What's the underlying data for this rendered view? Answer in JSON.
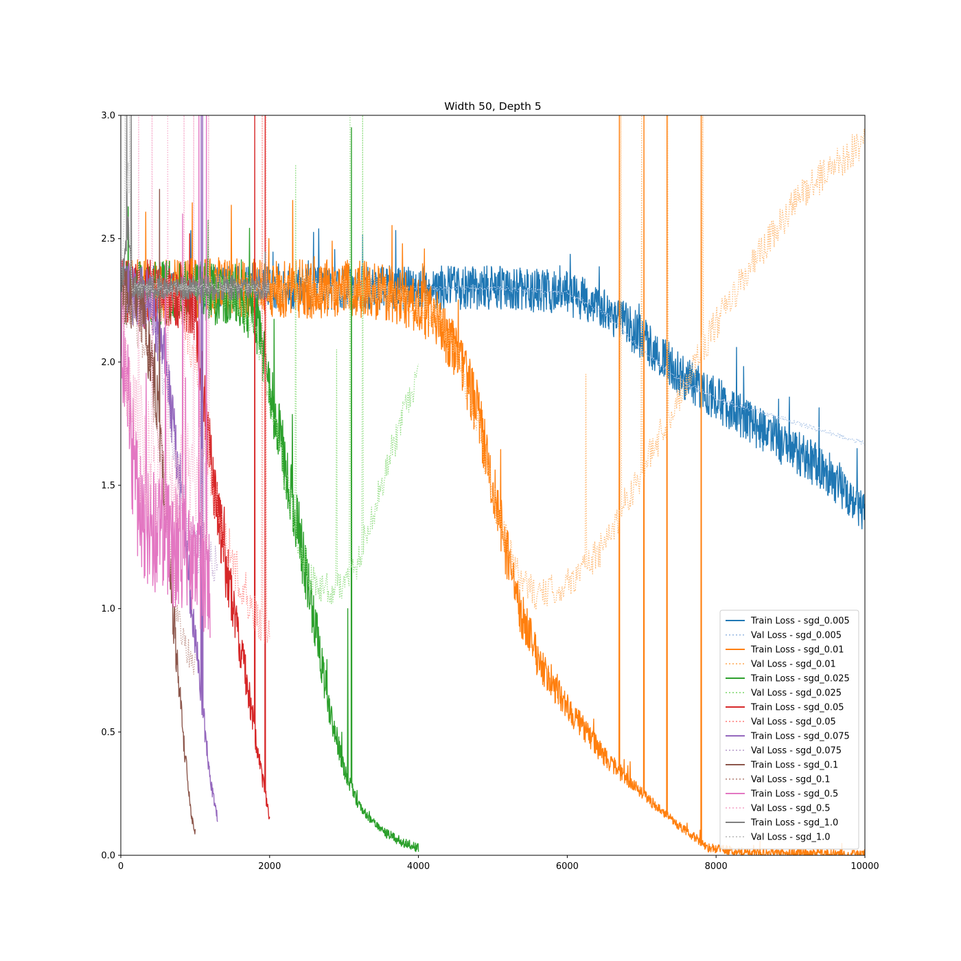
{
  "chart_data": {
    "type": "line",
    "title": "Width 50, Depth 5",
    "xlabel": "",
    "ylabel": "",
    "xlim": [
      0,
      10000
    ],
    "ylim": [
      0,
      3.0
    ],
    "x_ticks": [
      0,
      2000,
      4000,
      6000,
      8000,
      10000
    ],
    "y_ticks": [
      0.0,
      0.5,
      1.0,
      1.5,
      2.0,
      2.5,
      3.0
    ],
    "grid": false,
    "legend_position": "lower right",
    "series": [
      {
        "name": "Train Loss - sgd_0.005",
        "kind": "train",
        "color": "#1f77b4",
        "noise": 0.09,
        "x_end": 10000,
        "points": [
          [
            0,
            2.3
          ],
          [
            2000,
            2.3
          ],
          [
            5000,
            2.3
          ],
          [
            6000,
            2.28
          ],
          [
            6500,
            2.22
          ],
          [
            7000,
            2.1
          ],
          [
            7500,
            1.95
          ],
          [
            8000,
            1.85
          ],
          [
            8500,
            1.75
          ],
          [
            9000,
            1.65
          ],
          [
            9500,
            1.55
          ],
          [
            10000,
            1.4
          ]
        ]
      },
      {
        "name": "Val Loss - sgd_0.005",
        "kind": "val",
        "color": "#aec7e8",
        "noise": 0.01,
        "x_end": 10000,
        "points": [
          [
            0,
            2.3
          ],
          [
            5000,
            2.3
          ],
          [
            6000,
            2.28
          ],
          [
            6500,
            2.2
          ],
          [
            7000,
            2.05
          ],
          [
            7500,
            1.93
          ],
          [
            8000,
            1.85
          ],
          [
            9000,
            1.76
          ],
          [
            10000,
            1.67
          ]
        ]
      },
      {
        "name": "Train Loss - sgd_0.01",
        "kind": "train",
        "color": "#ff7f0e",
        "noise": 0.12,
        "x_end": 10000,
        "points": [
          [
            0,
            2.3
          ],
          [
            2000,
            2.3
          ],
          [
            3500,
            2.29
          ],
          [
            4200,
            2.2
          ],
          [
            4500,
            2.05
          ],
          [
            4800,
            1.8
          ],
          [
            5000,
            1.5
          ],
          [
            5300,
            1.05
          ],
          [
            5600,
            0.8
          ],
          [
            6000,
            0.6
          ],
          [
            6500,
            0.4
          ],
          [
            7000,
            0.25
          ],
          [
            7500,
            0.12
          ],
          [
            7900,
            0.03
          ],
          [
            8500,
            0.01
          ],
          [
            10000,
            0.005
          ]
        ],
        "spikes": [
          [
            6700,
            3.0
          ],
          [
            7030,
            3.0
          ],
          [
            7340,
            3.0
          ],
          [
            7800,
            3.0
          ]
        ]
      },
      {
        "name": "Val Loss - sgd_0.01",
        "kind": "val",
        "color": "#ffbb78",
        "noise": 0.07,
        "x_end": 10000,
        "points": [
          [
            0,
            2.3
          ],
          [
            3500,
            2.29
          ],
          [
            4200,
            2.2
          ],
          [
            4500,
            2.05
          ],
          [
            4800,
            1.75
          ],
          [
            5000,
            1.45
          ],
          [
            5300,
            1.15
          ],
          [
            5600,
            1.05
          ],
          [
            6000,
            1.1
          ],
          [
            6500,
            1.25
          ],
          [
            6800,
            1.45
          ],
          [
            7000,
            1.55
          ],
          [
            7400,
            1.8
          ],
          [
            7800,
            2.05
          ],
          [
            8500,
            2.4
          ],
          [
            9200,
            2.7
          ],
          [
            10000,
            2.9
          ]
        ],
        "spikes": [
          [
            6720,
            3.0
          ],
          [
            7000,
            3.0
          ],
          [
            7350,
            3.0
          ],
          [
            7820,
            3.0
          ],
          [
            6250,
            1.95
          ]
        ]
      },
      {
        "name": "Train Loss - sgd_0.025",
        "kind": "train",
        "color": "#2ca02c",
        "noise": 0.13,
        "x_end": 4000,
        "points": [
          [
            0,
            2.28
          ],
          [
            1500,
            2.28
          ],
          [
            1800,
            2.2
          ],
          [
            2000,
            1.9
          ],
          [
            2200,
            1.6
          ],
          [
            2400,
            1.3
          ],
          [
            2600,
            0.95
          ],
          [
            2800,
            0.6
          ],
          [
            3000,
            0.35
          ],
          [
            3200,
            0.2
          ],
          [
            3500,
            0.1
          ],
          [
            3800,
            0.05
          ],
          [
            4000,
            0.03
          ]
        ],
        "spikes": [
          [
            3100,
            2.95
          ],
          [
            3050,
            1.0
          ]
        ]
      },
      {
        "name": "Val Loss - sgd_0.025",
        "kind": "val",
        "color": "#98df8a",
        "noise": 0.07,
        "x_end": 4000,
        "points": [
          [
            0,
            2.28
          ],
          [
            1500,
            2.28
          ],
          [
            1800,
            2.15
          ],
          [
            2000,
            1.85
          ],
          [
            2200,
            1.55
          ],
          [
            2400,
            1.25
          ],
          [
            2600,
            1.1
          ],
          [
            2800,
            1.08
          ],
          [
            3000,
            1.1
          ],
          [
            3200,
            1.2
          ],
          [
            3400,
            1.4
          ],
          [
            3600,
            1.6
          ],
          [
            3800,
            1.78
          ],
          [
            4000,
            1.95
          ]
        ],
        "spikes": [
          [
            2350,
            2.8
          ],
          [
            3080,
            3.0
          ],
          [
            3250,
            3.0
          ],
          [
            2900,
            2.05
          ]
        ]
      },
      {
        "name": "Train Loss - sgd_0.05",
        "kind": "train",
        "color": "#d62728",
        "noise": 0.14,
        "x_end": 2000,
        "points": [
          [
            0,
            2.28
          ],
          [
            800,
            2.27
          ],
          [
            1000,
            2.2
          ],
          [
            1100,
            1.9
          ],
          [
            1250,
            1.5
          ],
          [
            1400,
            1.2
          ],
          [
            1550,
            0.95
          ],
          [
            1700,
            0.7
          ],
          [
            1850,
            0.4
          ],
          [
            2000,
            0.15
          ]
        ],
        "spikes": [
          [
            1940,
            3.0
          ],
          [
            1800,
            3.0
          ]
        ]
      },
      {
        "name": "Val Loss - sgd_0.05",
        "kind": "val",
        "color": "#ff9896",
        "noise": 0.1,
        "x_end": 2000,
        "points": [
          [
            0,
            2.28
          ],
          [
            800,
            2.25
          ],
          [
            1000,
            2.0
          ],
          [
            1100,
            1.7
          ],
          [
            1250,
            1.45
          ],
          [
            1400,
            1.3
          ],
          [
            1550,
            1.15
          ],
          [
            1700,
            1.05
          ],
          [
            1850,
            0.95
          ],
          [
            2000,
            0.9
          ]
        ],
        "spikes": [
          [
            1900,
            3.0
          ],
          [
            1950,
            3.0
          ]
        ]
      },
      {
        "name": "Train Loss - sgd_0.075",
        "kind": "train",
        "color": "#9467bd",
        "noise": 0.13,
        "x_end": 1300,
        "points": [
          [
            0,
            2.28
          ],
          [
            400,
            2.25
          ],
          [
            600,
            2.0
          ],
          [
            800,
            1.5
          ],
          [
            950,
            1.0
          ],
          [
            1100,
            0.6
          ],
          [
            1200,
            0.3
          ],
          [
            1300,
            0.15
          ]
        ],
        "spikes": [
          [
            1080,
            3.0
          ],
          [
            1100,
            3.0
          ]
        ]
      },
      {
        "name": "Val Loss - sgd_0.075",
        "kind": "val",
        "color": "#c5b0d5",
        "noise": 0.1,
        "x_end": 1300,
        "points": [
          [
            0,
            2.28
          ],
          [
            400,
            2.2
          ],
          [
            600,
            1.9
          ],
          [
            800,
            1.5
          ],
          [
            950,
            1.25
          ],
          [
            1100,
            1.2
          ],
          [
            1300,
            1.2
          ]
        ]
      },
      {
        "name": "Train Loss - sgd_0.1",
        "kind": "train",
        "color": "#8c564b",
        "noise": 0.13,
        "x_end": 1000,
        "points": [
          [
            0,
            2.28
          ],
          [
            300,
            2.2
          ],
          [
            500,
            1.8
          ],
          [
            650,
            1.2
          ],
          [
            750,
            0.8
          ],
          [
            850,
            0.45
          ],
          [
            950,
            0.15
          ],
          [
            1000,
            0.1
          ]
        ],
        "spikes": [
          [
            520,
            2.7
          ]
        ]
      },
      {
        "name": "Val Loss - sgd_0.1",
        "kind": "val",
        "color": "#c49c94",
        "noise": 0.1,
        "x_end": 1000,
        "points": [
          [
            0,
            2.28
          ],
          [
            300,
            2.1
          ],
          [
            500,
            1.7
          ],
          [
            650,
            1.3
          ],
          [
            750,
            1.0
          ],
          [
            850,
            0.85
          ],
          [
            950,
            0.8
          ],
          [
            1000,
            0.8
          ]
        ]
      },
      {
        "name": "Train Loss - sgd_0.5",
        "kind": "train",
        "color": "#e377c2",
        "noise": 0.25,
        "x_end": 1200,
        "points": [
          [
            0,
            2.2
          ],
          [
            100,
            1.8
          ],
          [
            200,
            1.5
          ],
          [
            300,
            1.35
          ],
          [
            500,
            1.3
          ],
          [
            700,
            1.25
          ],
          [
            900,
            1.2
          ],
          [
            1100,
            1.15
          ],
          [
            1200,
            1.1
          ]
        ],
        "spikes": [
          [
            600,
            2.4
          ],
          [
            830,
            2.6
          ],
          [
            1050,
            3.0
          ],
          [
            1150,
            3.0
          ]
        ]
      },
      {
        "name": "Val Loss - sgd_0.5",
        "kind": "val",
        "color": "#f7b6d2",
        "noise": 0.25,
        "x_end": 1200,
        "points": [
          [
            0,
            2.3
          ],
          [
            100,
            1.9
          ],
          [
            200,
            1.7
          ],
          [
            400,
            1.6
          ],
          [
            600,
            1.55
          ],
          [
            800,
            1.55
          ],
          [
            1000,
            1.5
          ],
          [
            1200,
            1.45
          ]
        ],
        "spikes": [
          [
            240,
            3.0
          ],
          [
            420,
            3.0
          ],
          [
            630,
            3.0
          ],
          [
            850,
            3.0
          ],
          [
            980,
            3.0
          ],
          [
            1180,
            3.0
          ]
        ]
      },
      {
        "name": "Train Loss - sgd_1.0",
        "kind": "train",
        "color": "#7f7f7f",
        "noise": 0.05,
        "x_end": 2000,
        "points": [
          [
            0,
            2.3
          ],
          [
            50,
            2.4
          ],
          [
            100,
            2.55
          ],
          [
            150,
            2.3
          ],
          [
            300,
            2.3
          ],
          [
            2000,
            2.3
          ]
        ],
        "spikes": [
          [
            80,
            3.0
          ],
          [
            140,
            3.0
          ]
        ]
      },
      {
        "name": "Val Loss - sgd_1.0",
        "kind": "val",
        "color": "#c7c7c7",
        "noise": 0.02,
        "x_end": 2000,
        "points": [
          [
            0,
            2.3
          ],
          [
            50,
            2.6
          ],
          [
            100,
            2.8
          ],
          [
            150,
            2.3
          ],
          [
            2000,
            2.3
          ]
        ],
        "spikes": [
          [
            60,
            3.0
          ],
          [
            120,
            3.0
          ]
        ]
      }
    ]
  }
}
